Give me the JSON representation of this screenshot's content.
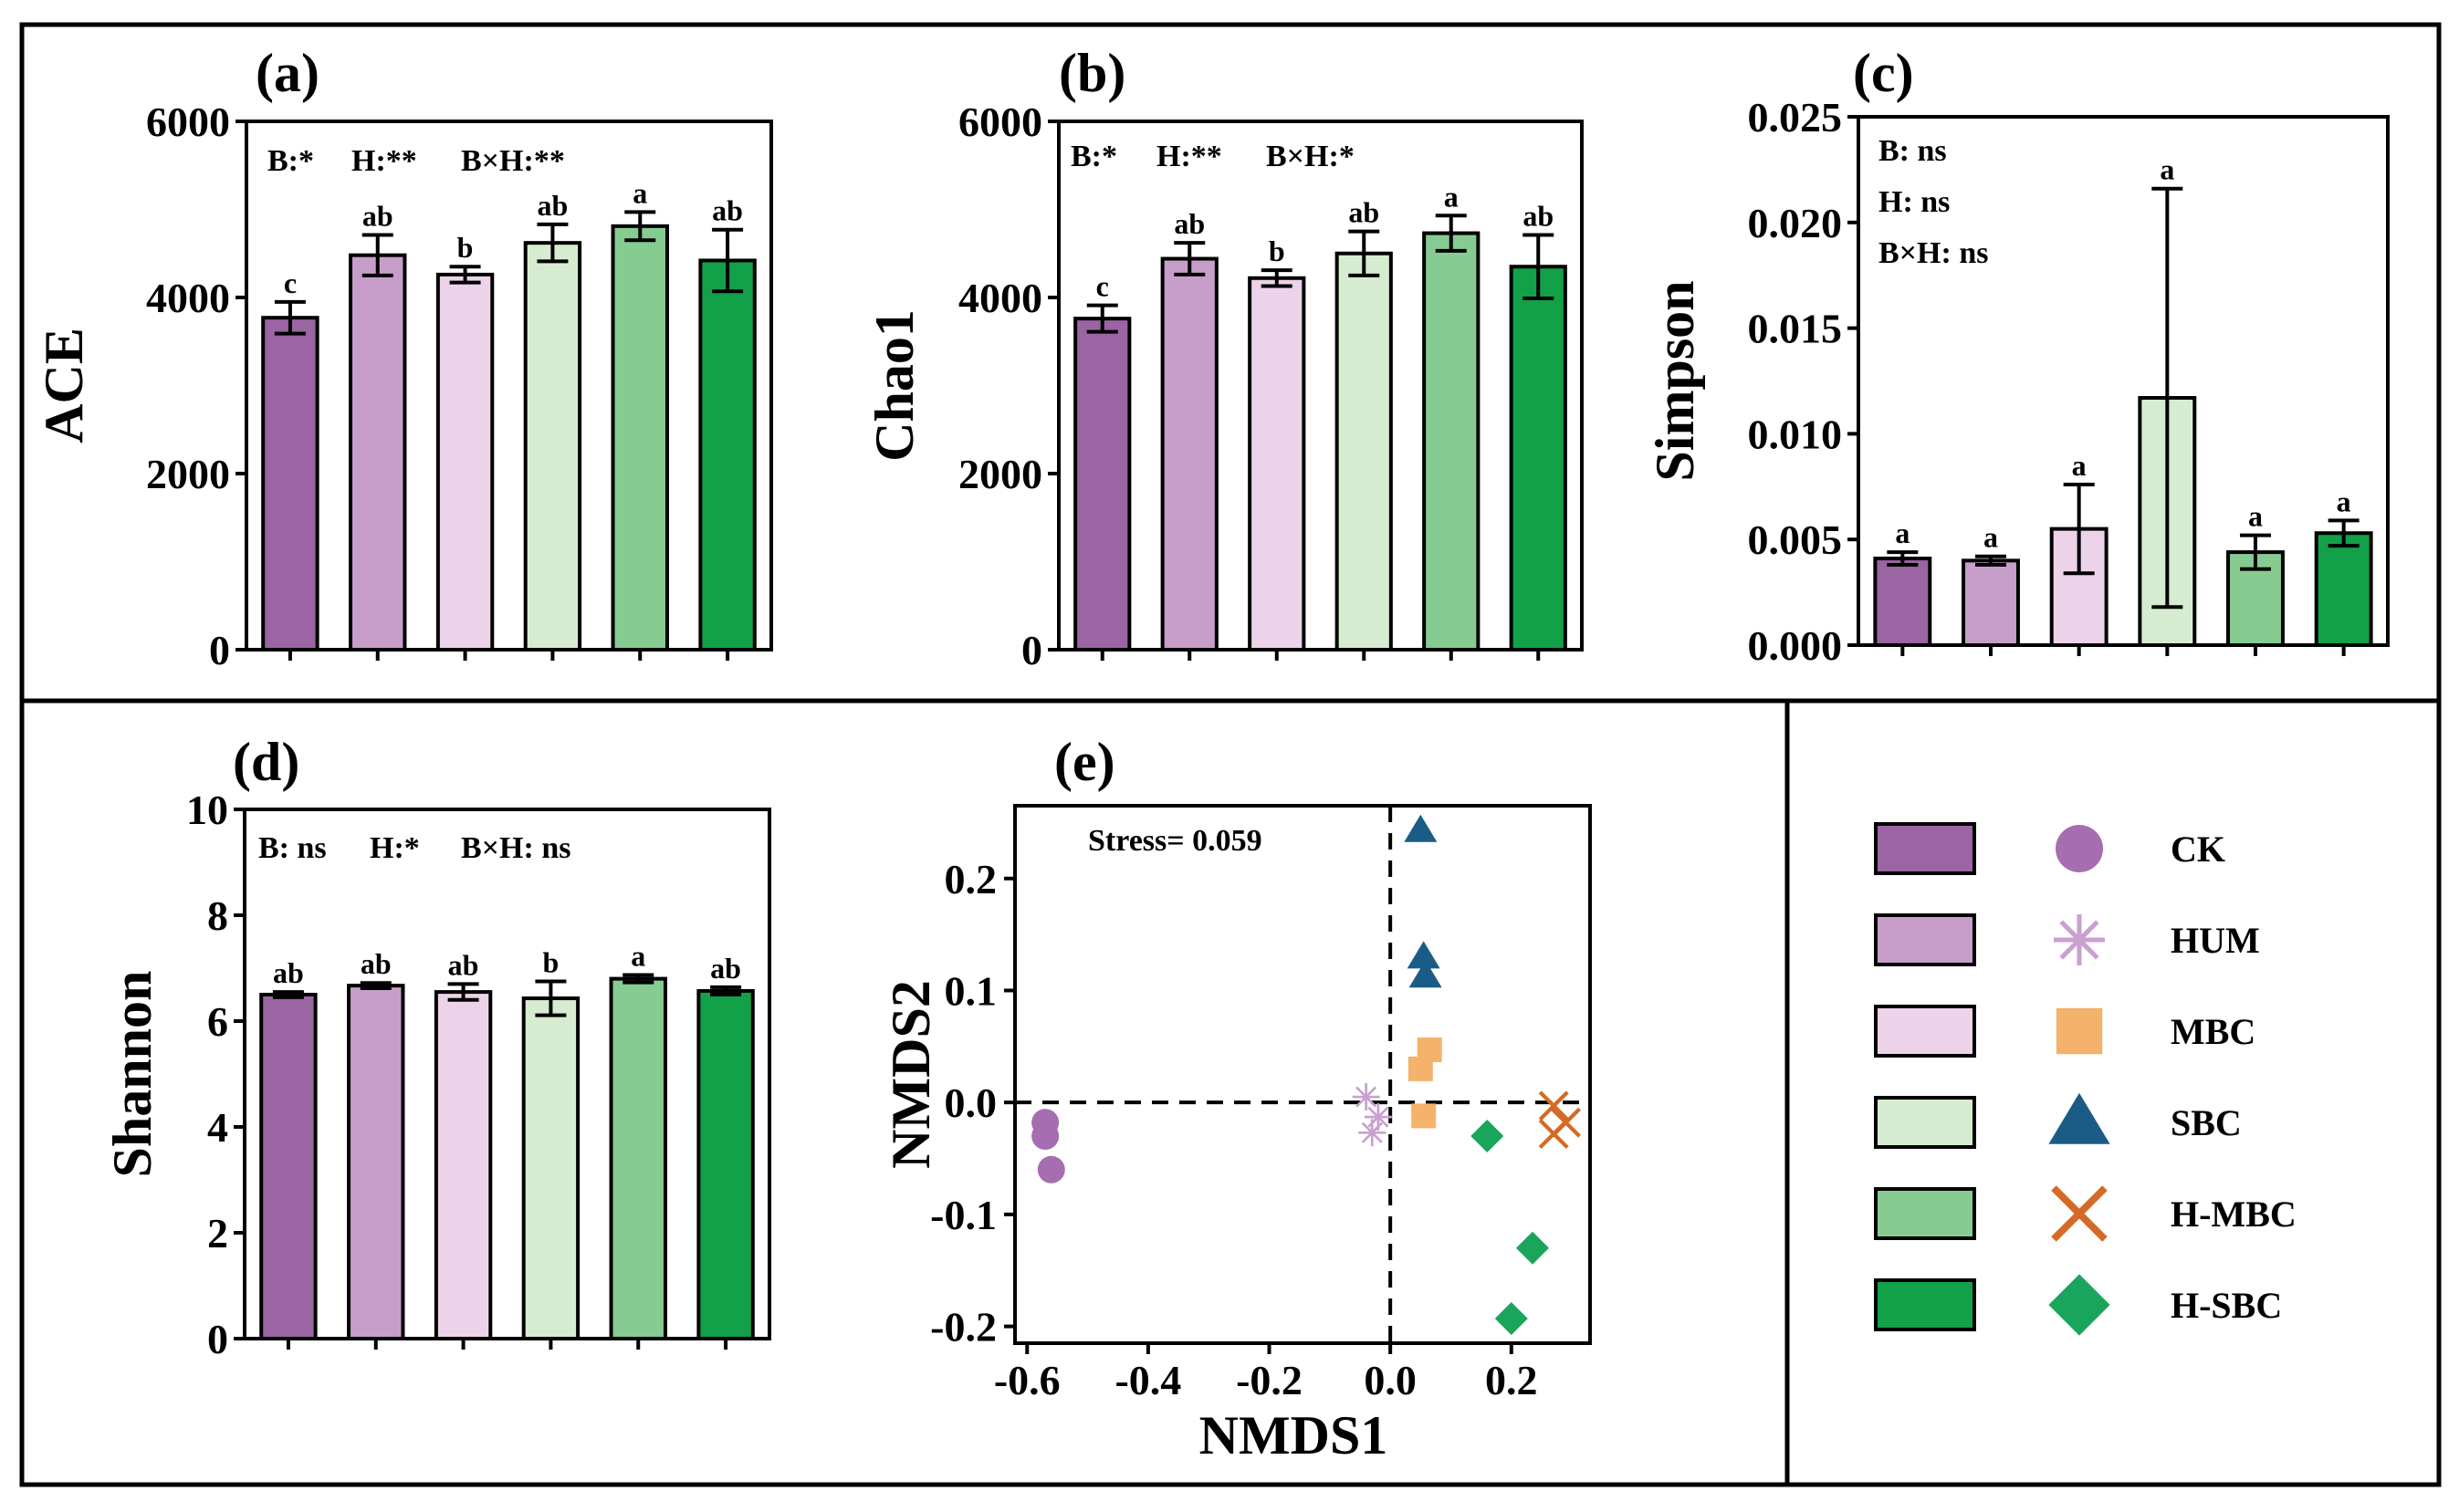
{
  "legend": {
    "entries": [
      {
        "name": "CK",
        "bar_color": "#9b64a3",
        "marker_color": "#a66db0",
        "marker": "circle"
      },
      {
        "name": "HUM",
        "bar_color": "#c79ec9",
        "marker_color": "#c9a0d0",
        "marker": "asterisk"
      },
      {
        "name": "MBC",
        "bar_color": "#ecd3ea",
        "marker_color": "#f5b26b",
        "marker": "square"
      },
      {
        "name": "SBC",
        "bar_color": "#d6ecd1",
        "marker_color": "#1a5c86",
        "marker": "triangle"
      },
      {
        "name": "H-MBC",
        "bar_color": "#86cc92",
        "marker_color": "#d56a26",
        "marker": "cross"
      },
      {
        "name": "H-SBC",
        "bar_color": "#12a049",
        "marker_color": "#1aa55c",
        "marker": "diamond"
      }
    ]
  },
  "chart_data": [
    {
      "id": "a",
      "panel_label": "(a)",
      "type": "bar",
      "ylabel": "ACE",
      "categories": [
        "CK",
        "HUM",
        "MBC",
        "SBC",
        "H-MBC",
        "H-SBC"
      ],
      "values": [
        3770,
        4480,
        4260,
        4620,
        4810,
        4420
      ],
      "errors": [
        180,
        230,
        90,
        210,
        160,
        350
      ],
      "letters": [
        "c",
        "ab",
        "b",
        "ab",
        "a",
        "ab"
      ],
      "ylim": [
        0,
        6000
      ],
      "yticks": [
        0,
        2000,
        4000,
        6000
      ],
      "ytick_labels": [
        "0",
        "2000",
        "4000",
        "6000"
      ],
      "annotations": [
        "B:*",
        "H:**",
        "B×H:**"
      ]
    },
    {
      "id": "b",
      "panel_label": "(b)",
      "type": "bar",
      "ylabel": "Chao1",
      "categories": [
        "CK",
        "HUM",
        "MBC",
        "SBC",
        "H-MBC",
        "H-SBC"
      ],
      "values": [
        3760,
        4440,
        4220,
        4500,
        4730,
        4350
      ],
      "errors": [
        150,
        180,
        90,
        250,
        200,
        360
      ],
      "letters": [
        "c",
        "ab",
        "b",
        "ab",
        "a",
        "ab"
      ],
      "ylim": [
        0,
        6000
      ],
      "yticks": [
        0,
        2000,
        4000,
        6000
      ],
      "ytick_labels": [
        "0",
        "2000",
        "4000",
        "6000"
      ],
      "annotations": [
        "B:*",
        "H:**",
        "B×H:*"
      ]
    },
    {
      "id": "c",
      "panel_label": "(c)",
      "type": "bar",
      "ylabel": "Simpson",
      "categories": [
        "CK",
        "HUM",
        "MBC",
        "SBC",
        "H-MBC",
        "H-SBC"
      ],
      "values": [
        0.0041,
        0.004,
        0.0055,
        0.0117,
        0.0044,
        0.0053
      ],
      "errors": [
        0.0003,
        0.0002,
        0.0021,
        0.0099,
        0.0008,
        0.0006
      ],
      "letters": [
        "a",
        "a",
        "a",
        "a",
        "a",
        "a"
      ],
      "ylim": [
        0,
        0.025
      ],
      "yticks": [
        0,
        0.005,
        0.01,
        0.015,
        0.02,
        0.025
      ],
      "ytick_labels": [
        "0.000",
        "0.005",
        "0.010",
        "0.015",
        "0.020",
        "0.025"
      ],
      "annotations": [
        "B: ns",
        "H: ns",
        "B×H: ns"
      ]
    },
    {
      "id": "d",
      "panel_label": "(d)",
      "type": "bar",
      "ylabel": "Shannon",
      "categories": [
        "CK",
        "HUM",
        "MBC",
        "SBC",
        "H-MBC",
        "H-SBC"
      ],
      "values": [
        6.5,
        6.67,
        6.55,
        6.43,
        6.8,
        6.57
      ],
      "errors": [
        0.05,
        0.05,
        0.15,
        0.32,
        0.07,
        0.07
      ],
      "letters": [
        "ab",
        "ab",
        "ab",
        "b",
        "a",
        "ab"
      ],
      "ylim": [
        0,
        10
      ],
      "yticks": [
        0,
        2,
        4,
        6,
        8,
        10
      ],
      "ytick_labels": [
        "0",
        "2",
        "4",
        "6",
        "8",
        "10"
      ],
      "annotations": [
        "B: ns",
        "H:*",
        "B×H: ns"
      ]
    },
    {
      "id": "e",
      "panel_label": "(e)",
      "type": "scatter",
      "xlabel": "NMDS1",
      "ylabel": "NMDS2",
      "xlim": [
        -0.62,
        0.33
      ],
      "ylim": [
        -0.215,
        0.265
      ],
      "xticks": [
        -0.6,
        -0.4,
        -0.2,
        0.0,
        0.2
      ],
      "xtick_labels": [
        "-0.6",
        "-0.4",
        "-0.2",
        "0.0",
        "0.2"
      ],
      "yticks": [
        -0.2,
        -0.1,
        0.0,
        0.1,
        0.2
      ],
      "ytick_labels": [
        "-0.2",
        "-0.1",
        "0.0",
        "0.1",
        "0.2"
      ],
      "annotation": "Stress= 0.059",
      "series": [
        {
          "name": "CK",
          "points": [
            [
              -0.57,
              -0.018
            ],
            [
              -0.57,
              -0.03
            ],
            [
              -0.56,
              -0.06
            ]
          ]
        },
        {
          "name": "HUM",
          "points": [
            [
              -0.04,
              0.005
            ],
            [
              -0.02,
              -0.013
            ],
            [
              -0.03,
              -0.027
            ]
          ]
        },
        {
          "name": "MBC",
          "points": [
            [
              0.065,
              0.047
            ],
            [
              0.05,
              0.03
            ],
            [
              0.055,
              -0.012
            ]
          ]
        },
        {
          "name": "SBC",
          "points": [
            [
              0.05,
              0.243
            ],
            [
              0.055,
              0.13
            ],
            [
              0.058,
              0.113
            ]
          ]
        },
        {
          "name": "H-MBC",
          "points": [
            [
              0.27,
              -0.003
            ],
            [
              0.29,
              -0.018
            ],
            [
              0.27,
              -0.028
            ]
          ]
        },
        {
          "name": "H-SBC",
          "points": [
            [
              0.16,
              -0.03
            ],
            [
              0.235,
              -0.13
            ],
            [
              0.2,
              -0.193
            ]
          ]
        }
      ]
    }
  ]
}
